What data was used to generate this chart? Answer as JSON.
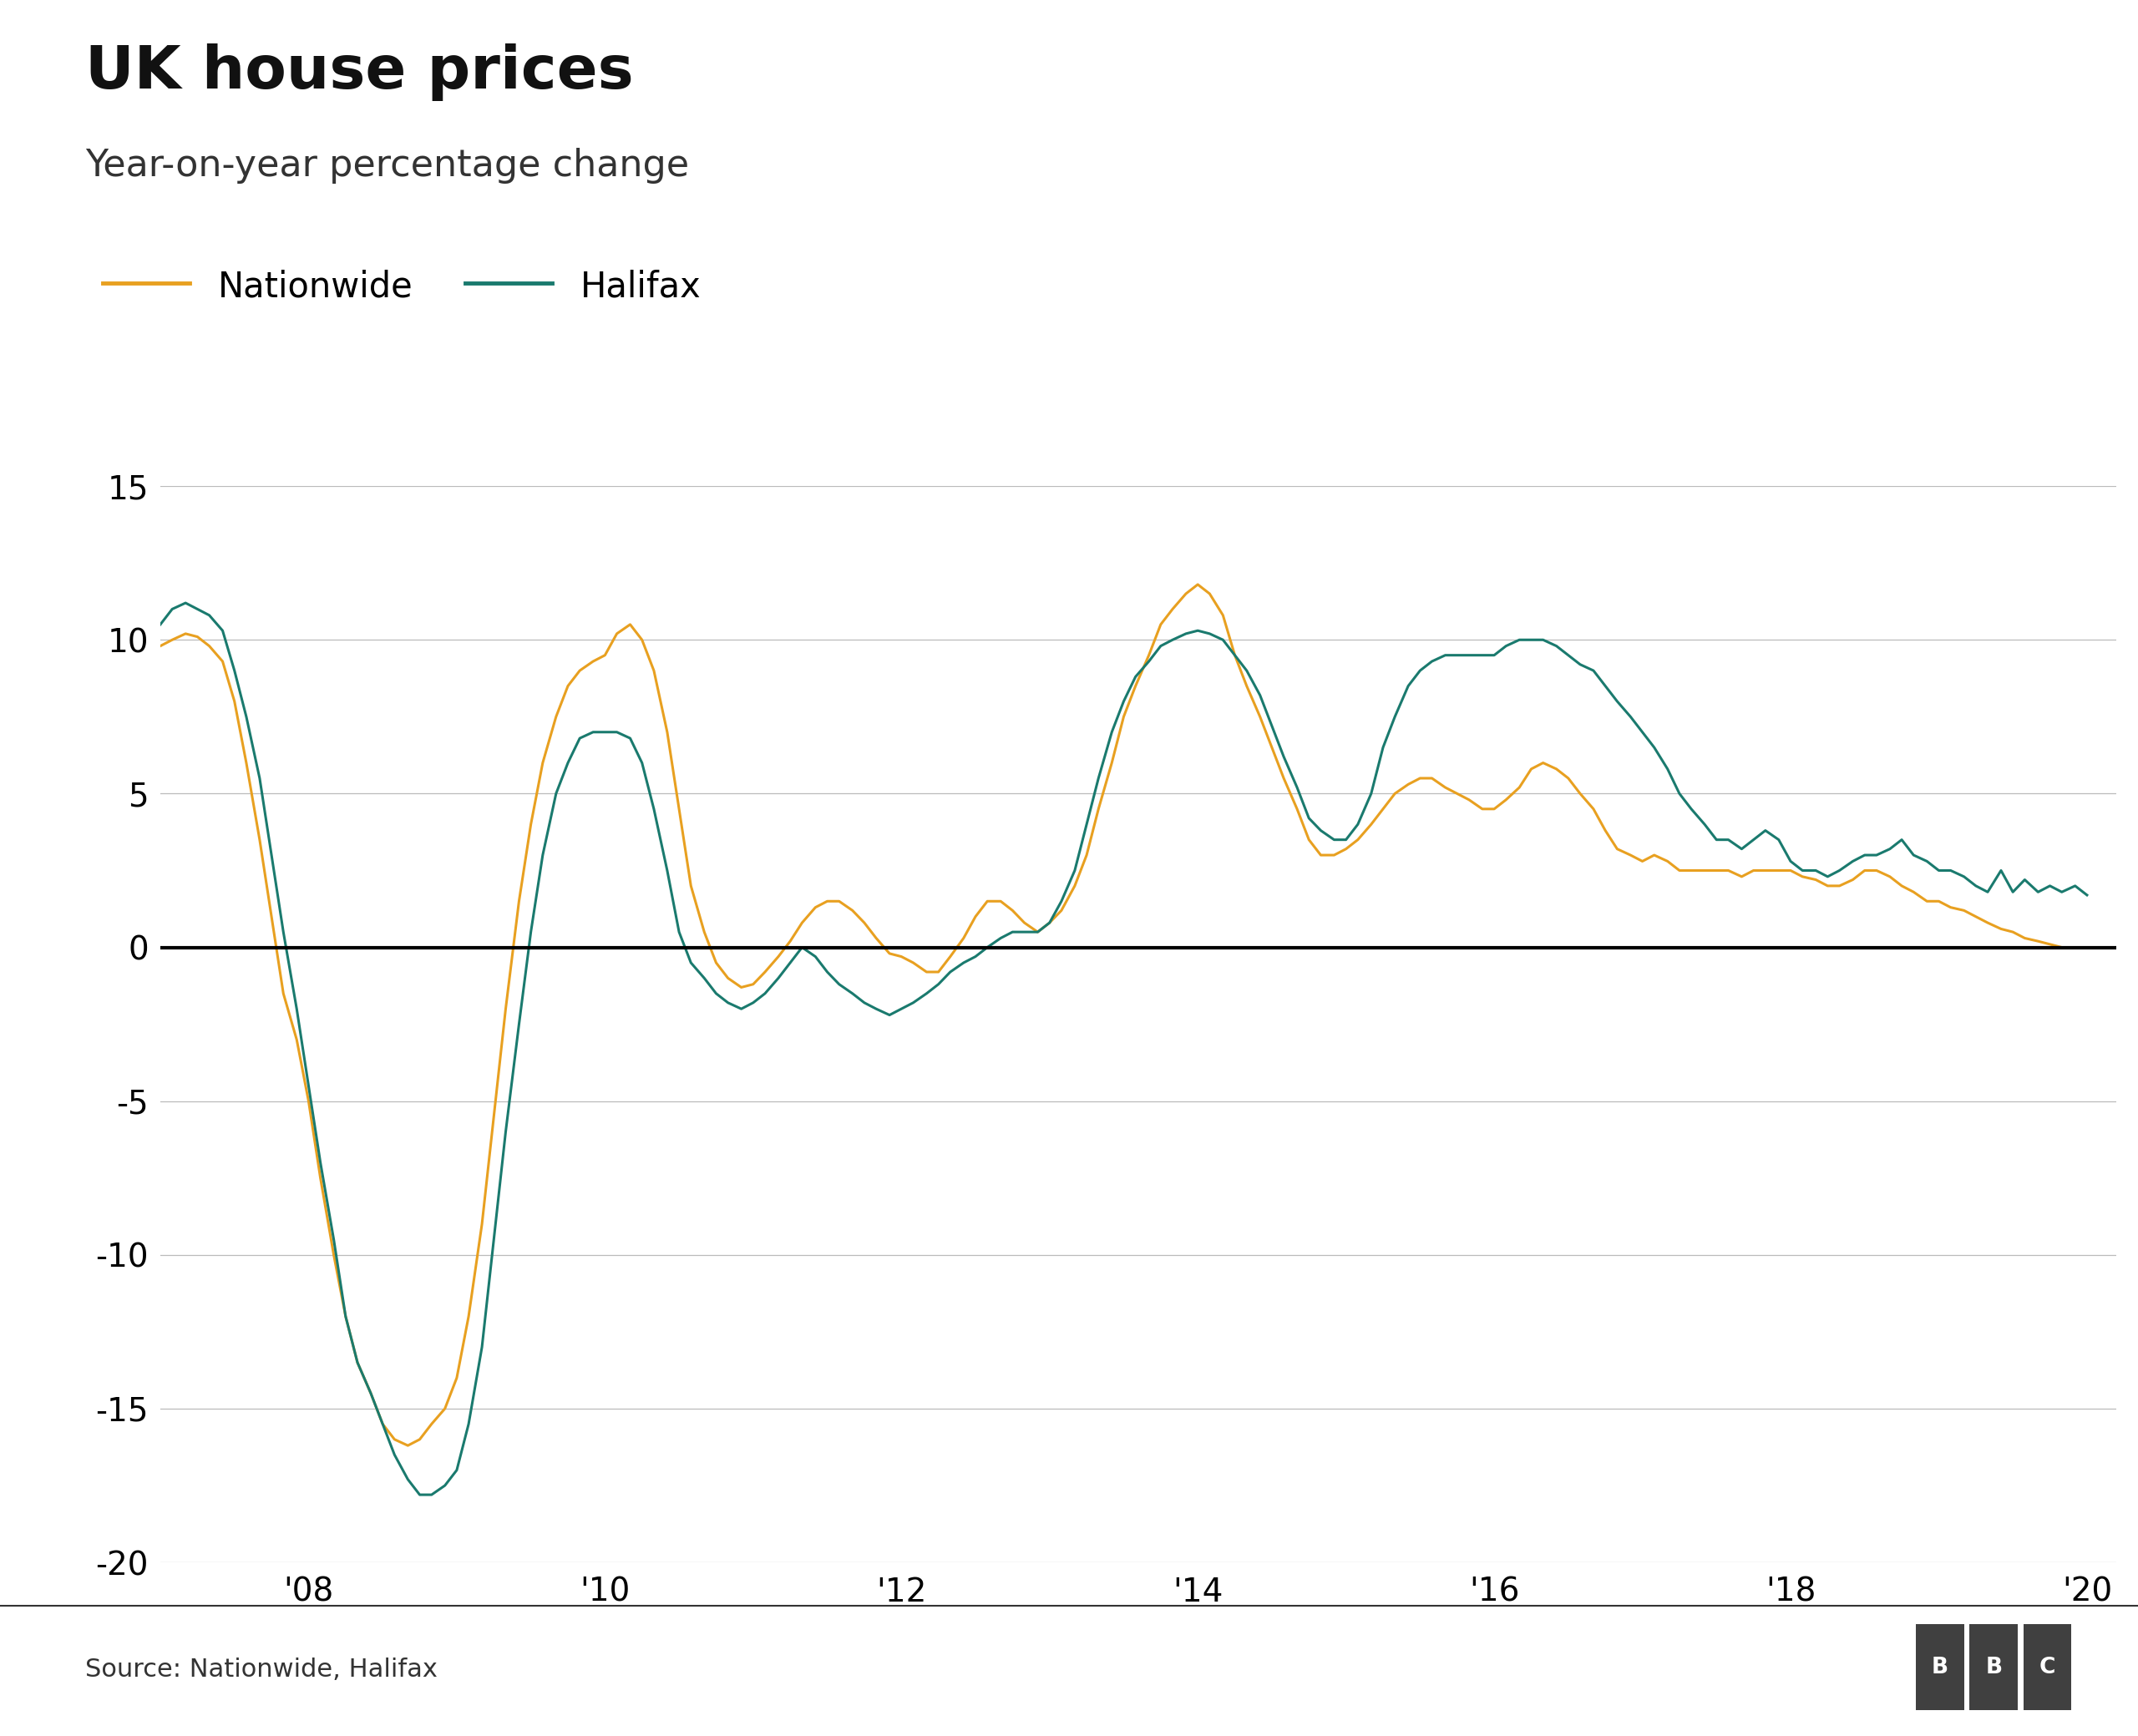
{
  "title": "UK house prices",
  "subtitle": "Year-on-year percentage change",
  "source": "Source: Nationwide, Halifax",
  "nationwide_color": "#E8A020",
  "halifax_color": "#1A7A6E",
  "zero_line_color": "#000000",
  "grid_color": "#BBBBBB",
  "background_color": "#FFFFFF",
  "title_fontsize": 52,
  "subtitle_fontsize": 32,
  "legend_fontsize": 30,
  "tick_fontsize": 28,
  "source_fontsize": 22,
  "ylim": [
    -20,
    15
  ],
  "yticks": [
    -20,
    -15,
    -10,
    -5,
    0,
    5,
    10,
    15
  ],
  "xtick_positions": [
    2008,
    2010,
    2012,
    2014,
    2016,
    2018,
    2020
  ],
  "xtick_labels": [
    "'08",
    "'10",
    "'12",
    "'14",
    "'16",
    "'18",
    "'20"
  ],
  "nationwide_x": [
    2007.0,
    2007.08,
    2007.17,
    2007.25,
    2007.33,
    2007.42,
    2007.5,
    2007.58,
    2007.67,
    2007.75,
    2007.83,
    2007.92,
    2008.0,
    2008.08,
    2008.17,
    2008.25,
    2008.33,
    2008.42,
    2008.5,
    2008.58,
    2008.67,
    2008.75,
    2008.83,
    2008.92,
    2009.0,
    2009.08,
    2009.17,
    2009.25,
    2009.33,
    2009.42,
    2009.5,
    2009.58,
    2009.67,
    2009.75,
    2009.83,
    2009.92,
    2010.0,
    2010.08,
    2010.17,
    2010.25,
    2010.33,
    2010.42,
    2010.5,
    2010.58,
    2010.67,
    2010.75,
    2010.83,
    2010.92,
    2011.0,
    2011.08,
    2011.17,
    2011.25,
    2011.33,
    2011.42,
    2011.5,
    2011.58,
    2011.67,
    2011.75,
    2011.83,
    2011.92,
    2012.0,
    2012.08,
    2012.17,
    2012.25,
    2012.33,
    2012.42,
    2012.5,
    2012.58,
    2012.67,
    2012.75,
    2012.83,
    2012.92,
    2013.0,
    2013.08,
    2013.17,
    2013.25,
    2013.33,
    2013.42,
    2013.5,
    2013.58,
    2013.67,
    2013.75,
    2013.83,
    2013.92,
    2014.0,
    2014.08,
    2014.17,
    2014.25,
    2014.33,
    2014.42,
    2014.5,
    2014.58,
    2014.67,
    2014.75,
    2014.83,
    2014.92,
    2015.0,
    2015.08,
    2015.17,
    2015.25,
    2015.33,
    2015.42,
    2015.5,
    2015.58,
    2015.67,
    2015.75,
    2015.83,
    2015.92,
    2016.0,
    2016.08,
    2016.17,
    2016.25,
    2016.33,
    2016.42,
    2016.5,
    2016.58,
    2016.67,
    2016.75,
    2016.83,
    2016.92,
    2017.0,
    2017.08,
    2017.17,
    2017.25,
    2017.33,
    2017.42,
    2017.5,
    2017.58,
    2017.67,
    2017.75,
    2017.83,
    2017.92,
    2018.0,
    2018.08,
    2018.17,
    2018.25,
    2018.33,
    2018.42,
    2018.5,
    2018.58,
    2018.67,
    2018.75,
    2018.83,
    2018.92,
    2019.0,
    2019.08,
    2019.17,
    2019.25,
    2019.33,
    2019.42,
    2019.5,
    2019.58,
    2019.67,
    2019.75,
    2019.83,
    2019.92,
    2020.0
  ],
  "nationwide_y": [
    9.8,
    10.0,
    10.2,
    10.1,
    9.8,
    9.3,
    8.0,
    6.0,
    3.5,
    1.0,
    -1.5,
    -3.0,
    -5.0,
    -7.5,
    -10.0,
    -12.0,
    -13.5,
    -14.5,
    -15.5,
    -16.0,
    -16.2,
    -16.0,
    -15.5,
    -15.0,
    -14.0,
    -12.0,
    -9.0,
    -5.5,
    -2.0,
    1.5,
    4.0,
    6.0,
    7.5,
    8.5,
    9.0,
    9.3,
    9.5,
    10.2,
    10.5,
    10.0,
    9.0,
    7.0,
    4.5,
    2.0,
    0.5,
    -0.5,
    -1.0,
    -1.3,
    -1.2,
    -0.8,
    -0.3,
    0.2,
    0.8,
    1.3,
    1.5,
    1.5,
    1.2,
    0.8,
    0.3,
    -0.2,
    -0.3,
    -0.5,
    -0.8,
    -0.8,
    -0.3,
    0.3,
    1.0,
    1.5,
    1.5,
    1.2,
    0.8,
    0.5,
    0.8,
    1.2,
    2.0,
    3.0,
    4.5,
    6.0,
    7.5,
    8.5,
    9.5,
    10.5,
    11.0,
    11.5,
    11.8,
    11.5,
    10.8,
    9.5,
    8.5,
    7.5,
    6.5,
    5.5,
    4.5,
    3.5,
    3.0,
    3.0,
    3.2,
    3.5,
    4.0,
    4.5,
    5.0,
    5.3,
    5.5,
    5.5,
    5.2,
    5.0,
    4.8,
    4.5,
    4.5,
    4.8,
    5.2,
    5.8,
    6.0,
    5.8,
    5.5,
    5.0,
    4.5,
    3.8,
    3.2,
    3.0,
    2.8,
    3.0,
    2.8,
    2.5,
    2.5,
    2.5,
    2.5,
    2.5,
    2.3,
    2.5,
    2.5,
    2.5,
    2.5,
    2.3,
    2.2,
    2.0,
    2.0,
    2.2,
    2.5,
    2.5,
    2.3,
    2.0,
    1.8,
    1.5,
    1.5,
    1.3,
    1.2,
    1.0,
    0.8,
    0.6,
    0.5,
    0.3,
    0.2,
    0.1,
    0.0,
    0.0,
    0.0
  ],
  "halifax_x": [
    2007.0,
    2007.08,
    2007.17,
    2007.25,
    2007.33,
    2007.42,
    2007.5,
    2007.58,
    2007.67,
    2007.75,
    2007.83,
    2007.92,
    2008.0,
    2008.08,
    2008.17,
    2008.25,
    2008.33,
    2008.42,
    2008.5,
    2008.58,
    2008.67,
    2008.75,
    2008.83,
    2008.92,
    2009.0,
    2009.08,
    2009.17,
    2009.25,
    2009.33,
    2009.42,
    2009.5,
    2009.58,
    2009.67,
    2009.75,
    2009.83,
    2009.92,
    2010.0,
    2010.08,
    2010.17,
    2010.25,
    2010.33,
    2010.42,
    2010.5,
    2010.58,
    2010.67,
    2010.75,
    2010.83,
    2010.92,
    2011.0,
    2011.08,
    2011.17,
    2011.25,
    2011.33,
    2011.42,
    2011.5,
    2011.58,
    2011.67,
    2011.75,
    2011.83,
    2011.92,
    2012.0,
    2012.08,
    2012.17,
    2012.25,
    2012.33,
    2012.42,
    2012.5,
    2012.58,
    2012.67,
    2012.75,
    2012.83,
    2012.92,
    2013.0,
    2013.08,
    2013.17,
    2013.25,
    2013.33,
    2013.42,
    2013.5,
    2013.58,
    2013.67,
    2013.75,
    2013.83,
    2013.92,
    2014.0,
    2014.08,
    2014.17,
    2014.25,
    2014.33,
    2014.42,
    2014.5,
    2014.58,
    2014.67,
    2014.75,
    2014.83,
    2014.92,
    2015.0,
    2015.08,
    2015.17,
    2015.25,
    2015.33,
    2015.42,
    2015.5,
    2015.58,
    2015.67,
    2015.75,
    2015.83,
    2015.92,
    2016.0,
    2016.08,
    2016.17,
    2016.25,
    2016.33,
    2016.42,
    2016.5,
    2016.58,
    2016.67,
    2016.75,
    2016.83,
    2016.92,
    2017.0,
    2017.08,
    2017.17,
    2017.25,
    2017.33,
    2017.42,
    2017.5,
    2017.58,
    2017.67,
    2017.75,
    2017.83,
    2017.92,
    2018.0,
    2018.08,
    2018.17,
    2018.25,
    2018.33,
    2018.42,
    2018.5,
    2018.58,
    2018.67,
    2018.75,
    2018.83,
    2018.92,
    2019.0,
    2019.08,
    2019.17,
    2019.25,
    2019.33,
    2019.42,
    2019.5,
    2019.58,
    2019.67,
    2019.75,
    2019.83,
    2019.92,
    2020.0
  ],
  "halifax_y": [
    10.5,
    11.0,
    11.2,
    11.0,
    10.8,
    10.3,
    9.0,
    7.5,
    5.5,
    3.0,
    0.5,
    -2.0,
    -4.5,
    -7.0,
    -9.5,
    -12.0,
    -13.5,
    -14.5,
    -15.5,
    -16.5,
    -17.3,
    -17.8,
    -17.8,
    -17.5,
    -17.0,
    -15.5,
    -13.0,
    -9.5,
    -6.0,
    -2.5,
    0.5,
    3.0,
    5.0,
    6.0,
    6.8,
    7.0,
    7.0,
    7.0,
    6.8,
    6.0,
    4.5,
    2.5,
    0.5,
    -0.5,
    -1.0,
    -1.5,
    -1.8,
    -2.0,
    -1.8,
    -1.5,
    -1.0,
    -0.5,
    0.0,
    -0.3,
    -0.8,
    -1.2,
    -1.5,
    -1.8,
    -2.0,
    -2.2,
    -2.0,
    -1.8,
    -1.5,
    -1.2,
    -0.8,
    -0.5,
    -0.3,
    0.0,
    0.3,
    0.5,
    0.5,
    0.5,
    0.8,
    1.5,
    2.5,
    4.0,
    5.5,
    7.0,
    8.0,
    8.8,
    9.3,
    9.8,
    10.0,
    10.2,
    10.3,
    10.2,
    10.0,
    9.5,
    9.0,
    8.2,
    7.2,
    6.2,
    5.2,
    4.2,
    3.8,
    3.5,
    3.5,
    4.0,
    5.0,
    6.5,
    7.5,
    8.5,
    9.0,
    9.3,
    9.5,
    9.5,
    9.5,
    9.5,
    9.5,
    9.8,
    10.0,
    10.0,
    10.0,
    9.8,
    9.5,
    9.2,
    9.0,
    8.5,
    8.0,
    7.5,
    7.0,
    6.5,
    5.8,
    5.0,
    4.5,
    4.0,
    3.5,
    3.5,
    3.2,
    3.5,
    3.8,
    3.5,
    2.8,
    2.5,
    2.5,
    2.3,
    2.5,
    2.8,
    3.0,
    3.0,
    3.2,
    3.5,
    3.0,
    2.8,
    2.5,
    2.5,
    2.3,
    2.0,
    1.8,
    2.5,
    1.8,
    2.2,
    1.8,
    2.0,
    1.8,
    2.0,
    1.7
  ]
}
